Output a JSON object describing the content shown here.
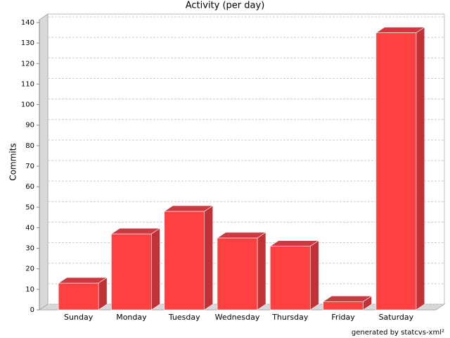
{
  "chart_data": {
    "type": "bar3d",
    "title": "Activity (per day)",
    "y_label": "Commits",
    "footer": "generated by statcvs-xml²",
    "categories": [
      "Sunday",
      "Monday",
      "Tuesday",
      "Wednesday",
      "Thursday",
      "Friday",
      "Saturday"
    ],
    "values": [
      13,
      37,
      48,
      35,
      31,
      4,
      135
    ],
    "color": "#ff4040",
    "ylim": [
      0,
      140
    ],
    "yticks": [
      0,
      10,
      20,
      30,
      40,
      50,
      60,
      70,
      80,
      90,
      100,
      110,
      120,
      130,
      140
    ],
    "grid": true
  }
}
